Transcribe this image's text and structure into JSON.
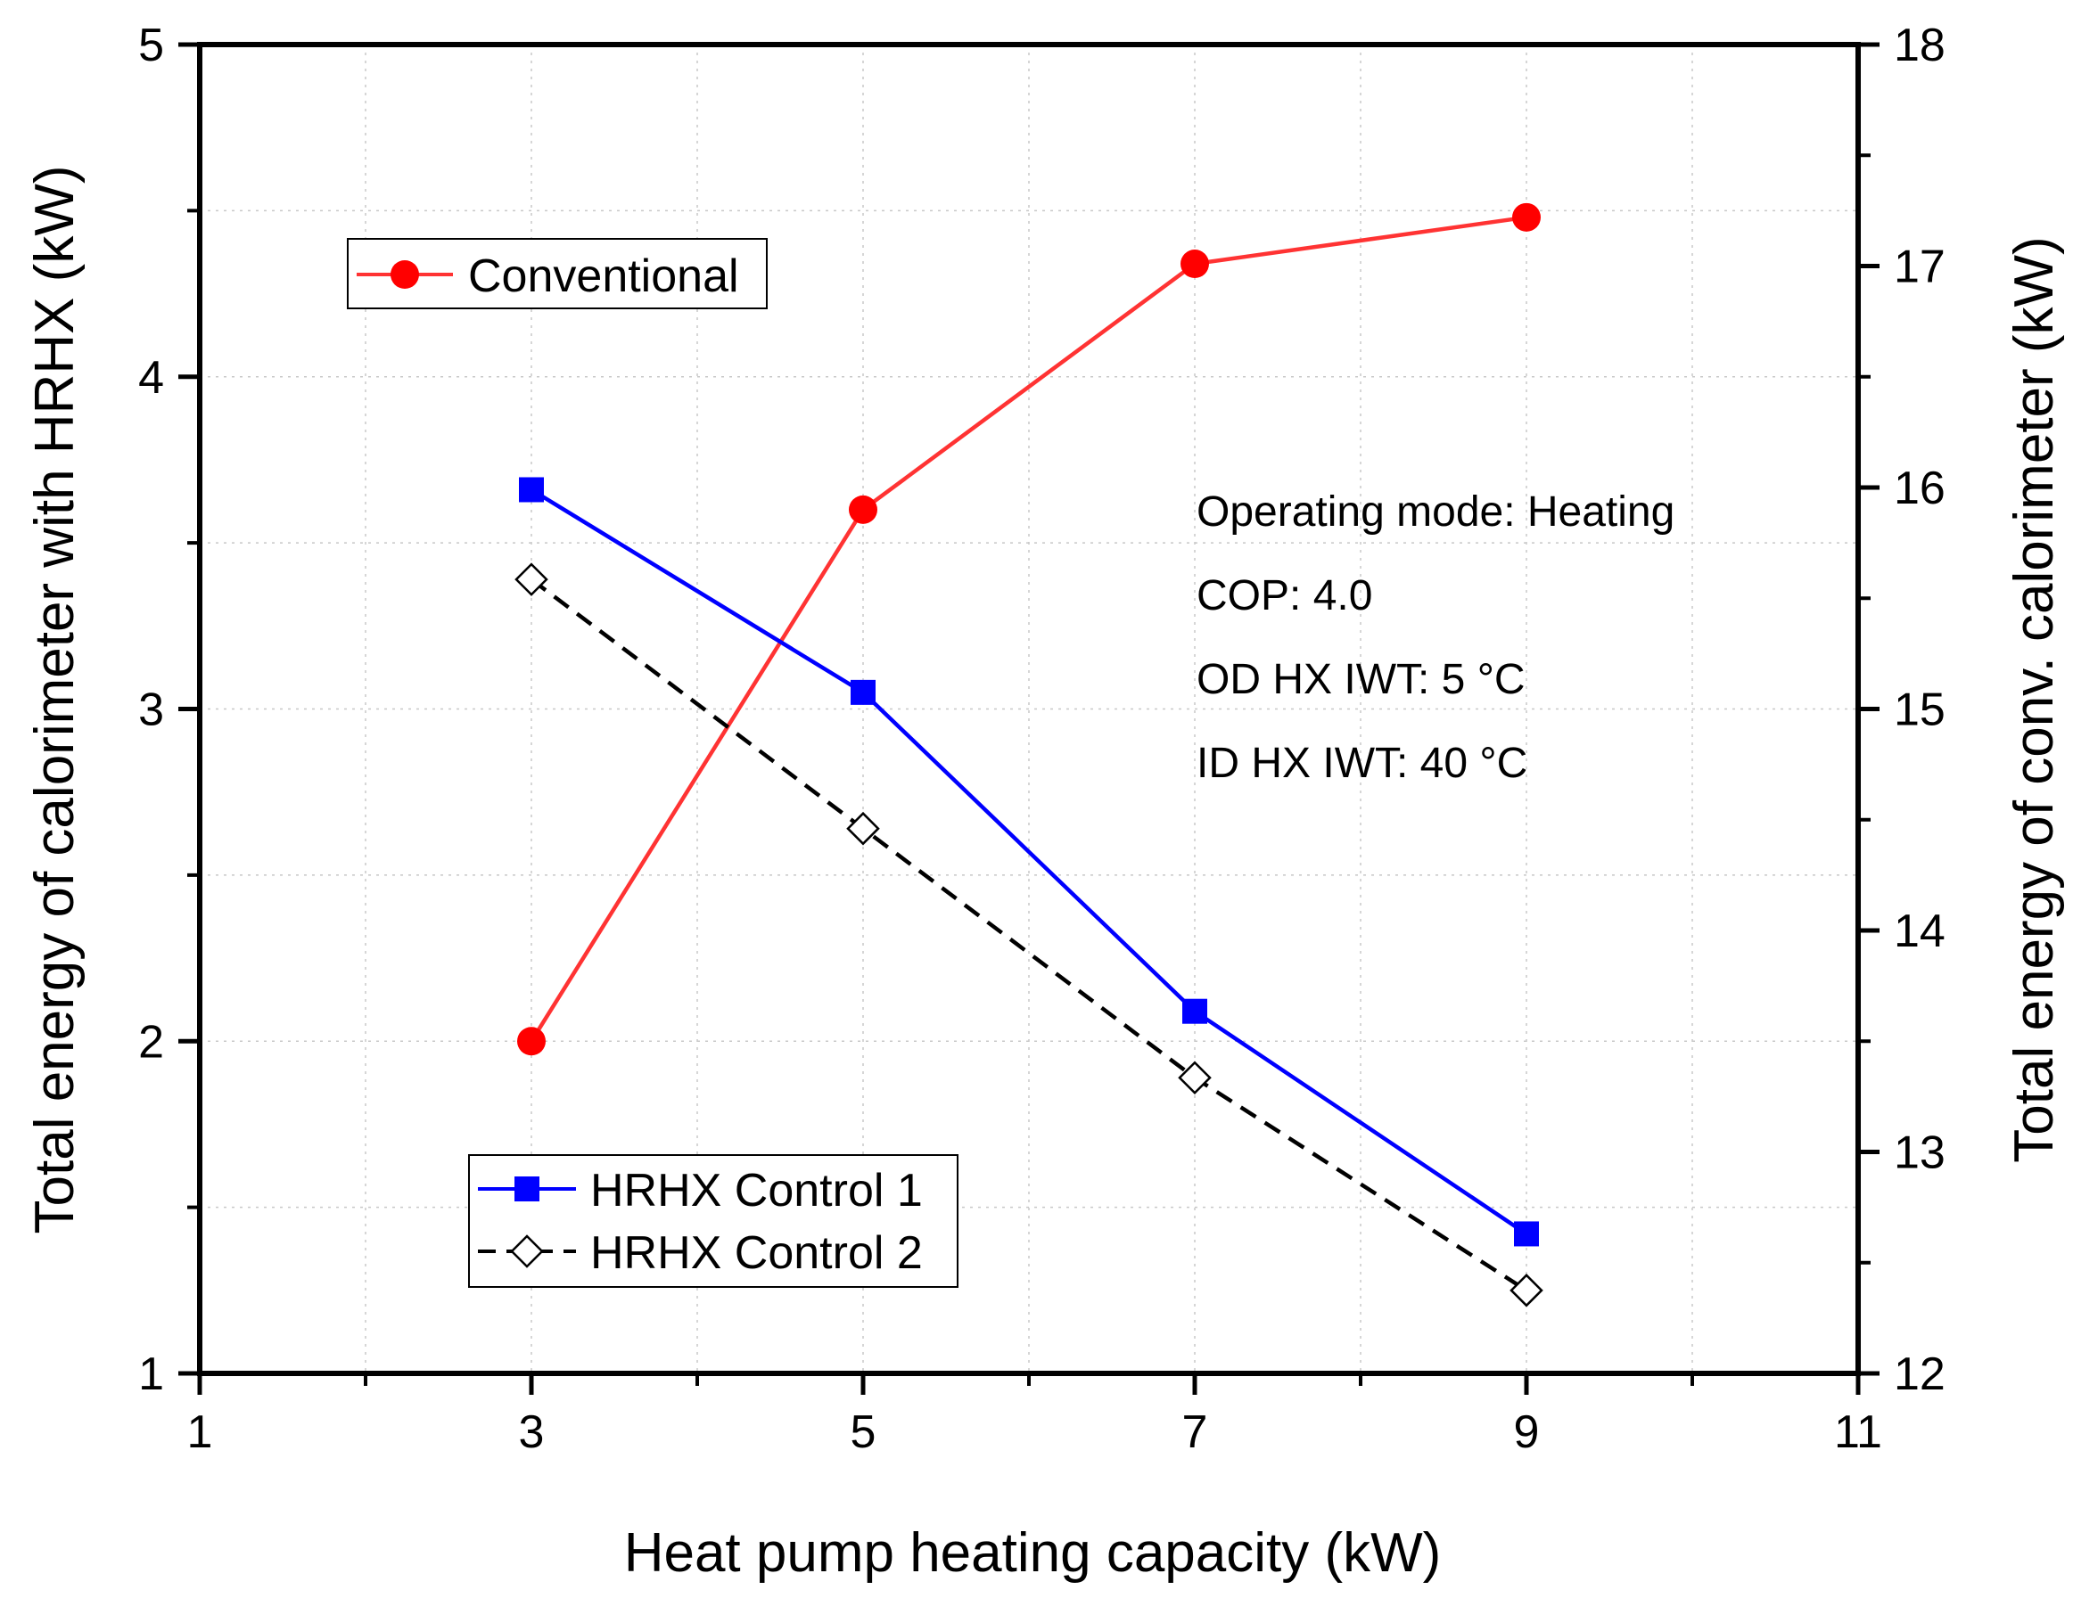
{
  "chart_data": {
    "type": "line",
    "title": "",
    "xlabel": "Heat pump heating capacity (kW)",
    "ylabel_left": "Total energy of calorimeter with HRHX (kW)",
    "ylabel_right": "Total energy  of conv. calorimeter (kW)",
    "xlim": [
      1,
      11
    ],
    "ylim_left": [
      1,
      5
    ],
    "ylim_right": [
      12,
      18
    ],
    "x_ticks": [
      1,
      3,
      5,
      7,
      9,
      11
    ],
    "x_tick_labels": [
      "1",
      "3",
      "5",
      "7",
      "9",
      "11"
    ],
    "x_minor_ticks": [
      2,
      4,
      6,
      8,
      10
    ],
    "y_left_ticks": [
      1,
      2,
      3,
      4,
      5
    ],
    "y_left_tick_labels": [
      "1",
      "2",
      "3",
      "4",
      "5"
    ],
    "y_left_minor_ticks": [
      1.5,
      2.5,
      3.5,
      4.5
    ],
    "y_right_ticks": [
      12,
      13,
      14,
      15,
      16,
      17,
      18
    ],
    "y_right_tick_labels": [
      "12",
      "13",
      "14",
      "15",
      "16",
      "17",
      "18"
    ],
    "y_right_minor_ticks": [
      12.5,
      13.5,
      14.5,
      15.5,
      16.5,
      17.5
    ],
    "grid": true,
    "series": [
      {
        "name": "Conventional",
        "axis": "right",
        "color": "#ff0000",
        "line_color": "#ff3333",
        "marker": "circle",
        "dash": "solid",
        "x": [
          3,
          5,
          7,
          9
        ],
        "y": [
          13.5,
          15.9,
          17.01,
          17.22
        ]
      },
      {
        "name": "HRHX Control 1",
        "axis": "left",
        "color": "#0000ff",
        "line_color": "#0000ff",
        "marker": "square",
        "dash": "solid",
        "x": [
          3,
          5,
          7,
          9
        ],
        "y": [
          3.66,
          3.05,
          2.09,
          1.42
        ]
      },
      {
        "name": "HRHX Control 2",
        "axis": "left",
        "color": "#000000",
        "line_color": "#000000",
        "marker": "diamond-open",
        "dash": "dashed",
        "x": [
          3,
          5,
          7,
          9
        ],
        "y": [
          3.39,
          2.64,
          1.89,
          1.25
        ]
      }
    ],
    "legends": [
      {
        "placement": "upper-left",
        "series": [
          "Conventional"
        ]
      },
      {
        "placement": "lower-left",
        "series": [
          "HRHX Control 1",
          "HRHX Control 2"
        ]
      }
    ],
    "annotations": [
      "Operating mode: Heating",
      "COP: 4.0",
      "OD HX IWT: 5 °C",
      "ID HX IWT: 40 °C"
    ]
  }
}
